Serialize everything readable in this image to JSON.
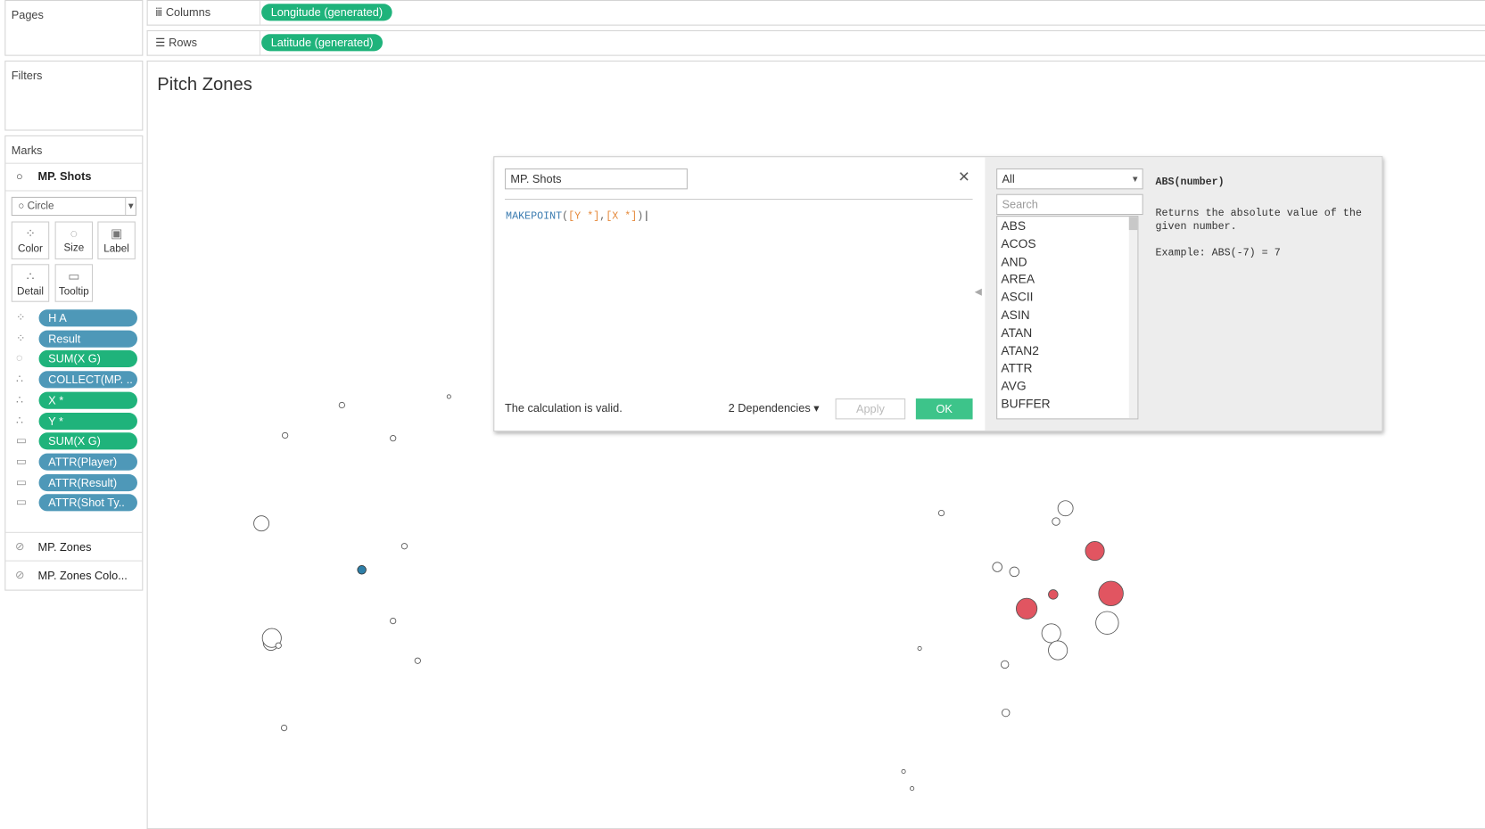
{
  "shelves": {
    "pages": "Pages",
    "columns": {
      "label": "Columns",
      "pill": "Longitude (generated)"
    },
    "rows": {
      "label": "Rows",
      "pill": "Latitude (generated)"
    },
    "filters": "Filters"
  },
  "marks": {
    "title": "Marks",
    "layer": "MP. Shots",
    "mark_type": "Circle",
    "cards": [
      "Color",
      "Size",
      "Label",
      "Detail",
      "Tooltip"
    ],
    "pills": [
      "H A",
      "Result",
      "SUM(X G)",
      "COLLECT(MP. ..",
      "X *",
      "Y *",
      "SUM(X G)",
      "ATTR(Player)",
      "ATTR(Result)",
      "ATTR(Shot Ty.."
    ],
    "layers": [
      "MP. Zones",
      "MP. Zones Colo..."
    ]
  },
  "sheet": {
    "title": "Pitch Zones"
  },
  "calc": {
    "name": "MP. Shots",
    "formula": [
      "MAKEPOINT",
      "(",
      "[Y *]",
      ",",
      "[X *]",
      ")"
    ],
    "status": "The calculation is valid.",
    "dependencies": "2 Dependencies",
    "apply": "Apply",
    "ok": "OK"
  },
  "functions": {
    "filter": "All",
    "search": "Search",
    "list": [
      "ABS",
      "ACOS",
      "AND",
      "AREA",
      "ASCII",
      "ASIN",
      "ATAN",
      "ATAN2",
      "ATTR",
      "AVG",
      "BUFFER"
    ],
    "signature": "ABS(number)",
    "description": "Returns the absolute value of the given number.",
    "example": "Example: ABS(-7) = 7"
  }
}
